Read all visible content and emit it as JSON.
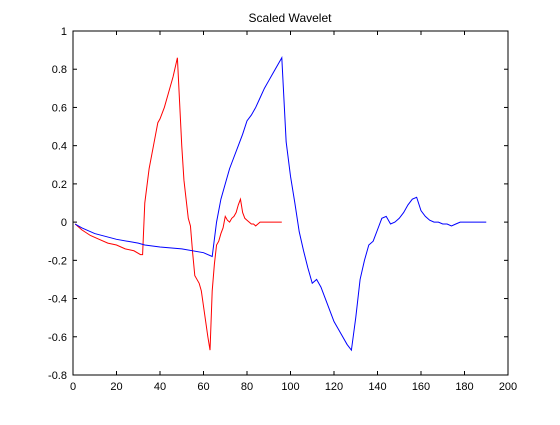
{
  "chart_data": {
    "type": "line",
    "title": "Scaled Wavelet",
    "xlabel": "",
    "ylabel": "",
    "xlim": [
      0,
      200
    ],
    "ylim": [
      -0.8,
      1
    ],
    "xticks": [
      0,
      20,
      40,
      60,
      80,
      100,
      120,
      140,
      160,
      180,
      200
    ],
    "yticks": [
      -0.8,
      -0.6,
      -0.4,
      -0.2,
      0,
      0.2,
      0.4,
      0.6,
      0.8,
      1
    ],
    "ytick_labels": [
      "-0.8",
      "-0.6",
      "-0.4",
      "-0.2",
      "0",
      "0.2",
      "0.4",
      "0.6",
      "0.8",
      "1"
    ],
    "grid": false,
    "legend": false,
    "series": [
      {
        "color": "#ff0000",
        "x": [
          1,
          4,
          8,
          12,
          16,
          20,
          24,
          28,
          31,
          32,
          33,
          35,
          37,
          39,
          40,
          42,
          44,
          46,
          48,
          49,
          50,
          51,
          52,
          53,
          54,
          55,
          56,
          57,
          58,
          59,
          60,
          61,
          62,
          63,
          64,
          65,
          66,
          67,
          68,
          69,
          70,
          71,
          72,
          73,
          74,
          75,
          76,
          77,
          78,
          79,
          80,
          81,
          82,
          83,
          84,
          85,
          86,
          87,
          88,
          89,
          90,
          91,
          92,
          93,
          94,
          95,
          96
        ],
        "y": [
          -0.01,
          -0.04,
          -0.07,
          -0.09,
          -0.11,
          -0.12,
          -0.14,
          -0.15,
          -0.17,
          -0.17,
          0.1,
          0.28,
          0.4,
          0.52,
          0.54,
          0.6,
          0.68,
          0.76,
          0.86,
          0.63,
          0.4,
          0.22,
          0.12,
          0.02,
          -0.02,
          -0.16,
          -0.28,
          -0.3,
          -0.32,
          -0.36,
          -0.44,
          -0.52,
          -0.6,
          -0.67,
          -0.36,
          -0.22,
          -0.12,
          -0.1,
          -0.06,
          -0.03,
          0.03,
          0.01,
          0.0,
          0.02,
          0.03,
          0.05,
          0.09,
          0.12,
          0.05,
          0.02,
          0.01,
          0.0,
          -0.01,
          -0.01,
          -0.02,
          -0.01,
          0.0,
          0.0,
          0.0,
          0.0,
          0.0,
          0.0,
          0.0,
          0.0,
          0.0,
          0.0,
          0.0
        ]
      },
      {
        "color": "#0000ff",
        "x": [
          1,
          4,
          10,
          20,
          30,
          33,
          40,
          50,
          60,
          64,
          66,
          68,
          70,
          72,
          74,
          76,
          78,
          80,
          82,
          84,
          86,
          88,
          90,
          92,
          94,
          96,
          98,
          100,
          102,
          104,
          106,
          108,
          110,
          112,
          114,
          116,
          118,
          120,
          122,
          124,
          126,
          128,
          130,
          132,
          134,
          136,
          138,
          140,
          142,
          144,
          146,
          148,
          150,
          152,
          154,
          156,
          158,
          160,
          162,
          164,
          166,
          168,
          170,
          172,
          174,
          176,
          178,
          180,
          182,
          184,
          186,
          188,
          190
        ],
        "y": [
          -0.01,
          -0.03,
          -0.06,
          -0.09,
          -0.11,
          -0.12,
          -0.13,
          -0.14,
          -0.16,
          -0.18,
          0.0,
          0.12,
          0.2,
          0.28,
          0.34,
          0.4,
          0.46,
          0.53,
          0.56,
          0.6,
          0.65,
          0.7,
          0.74,
          0.78,
          0.82,
          0.86,
          0.42,
          0.24,
          0.1,
          -0.05,
          -0.15,
          -0.24,
          -0.32,
          -0.3,
          -0.34,
          -0.4,
          -0.46,
          -0.52,
          -0.56,
          -0.6,
          -0.64,
          -0.67,
          -0.5,
          -0.3,
          -0.2,
          -0.12,
          -0.1,
          -0.04,
          0.02,
          0.03,
          -0.01,
          0.0,
          0.02,
          0.05,
          0.09,
          0.12,
          0.13,
          0.06,
          0.03,
          0.01,
          0.0,
          0.0,
          -0.01,
          -0.01,
          -0.02,
          -0.01,
          0.0,
          0.0,
          0.0,
          0.0,
          0.0,
          0.0,
          0.0
        ]
      }
    ]
  }
}
